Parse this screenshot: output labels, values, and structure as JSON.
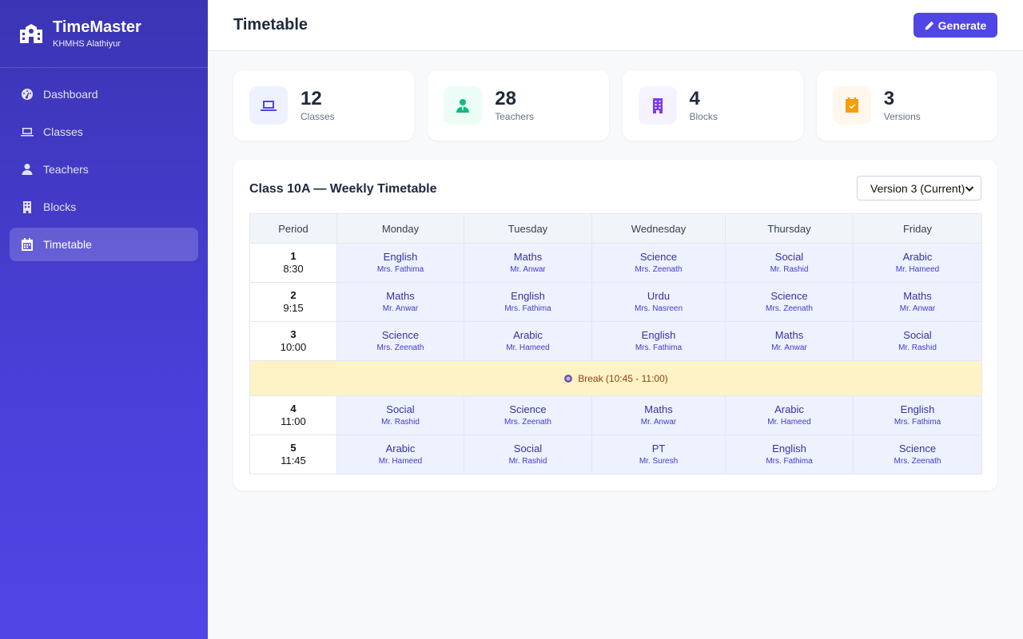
{
  "brand": {
    "name": "TimeMaster",
    "subtitle": "KHMHS Alathiyur"
  },
  "nav": [
    {
      "label": "Dashboard",
      "icon": "dashboard-icon"
    },
    {
      "label": "Classes",
      "icon": "laptop-icon"
    },
    {
      "label": "Teachers",
      "icon": "user-icon"
    },
    {
      "label": "Blocks",
      "icon": "building-icon"
    },
    {
      "label": "Timetable",
      "icon": "calendar-icon",
      "active": true
    }
  ],
  "header": {
    "title": "Timetable",
    "generate_label": "Generate"
  },
  "stats": [
    {
      "value": "12",
      "label": "Classes",
      "icon": "laptop-icon",
      "color": "#4f46e5",
      "bg": "#eef2ff"
    },
    {
      "value": "28",
      "label": "Teachers",
      "icon": "user-icon",
      "color": "#10b981",
      "bg": "#ecfdf5"
    },
    {
      "value": "4",
      "label": "Blocks",
      "icon": "building-icon",
      "color": "#7c3aed",
      "bg": "#f5f3ff"
    },
    {
      "value": "3",
      "label": "Versions",
      "icon": "calendar-check-icon",
      "color": "#f59e0b",
      "bg": "#fff7ed"
    }
  ],
  "timetable": {
    "title": "Class 10A — Weekly Timetable",
    "version_selected": "Version 3 (Current)",
    "columns": [
      "Period",
      "Monday",
      "Tuesday",
      "Wednesday",
      "Thursday",
      "Friday"
    ],
    "rows": [
      {
        "num": "1",
        "time": "8:30",
        "slots": [
          {
            "subject": "English",
            "teacher": "Mrs. Fathima"
          },
          {
            "subject": "Maths",
            "teacher": "Mr. Anwar"
          },
          {
            "subject": "Science",
            "teacher": "Mrs. Zeenath"
          },
          {
            "subject": "Social",
            "teacher": "Mr. Rashid"
          },
          {
            "subject": "Arabic",
            "teacher": "Mr. Hameed"
          }
        ]
      },
      {
        "num": "2",
        "time": "9:15",
        "slots": [
          {
            "subject": "Maths",
            "teacher": "Mr. Anwar"
          },
          {
            "subject": "English",
            "teacher": "Mrs. Fathima"
          },
          {
            "subject": "Urdu",
            "teacher": "Mrs. Nasreen"
          },
          {
            "subject": "Science",
            "teacher": "Mrs. Zeenath"
          },
          {
            "subject": "Maths",
            "teacher": "Mr. Anwar"
          }
        ]
      },
      {
        "num": "3",
        "time": "10:00",
        "slots": [
          {
            "subject": "Science",
            "teacher": "Mrs. Zeenath"
          },
          {
            "subject": "Arabic",
            "teacher": "Mr. Hameed"
          },
          {
            "subject": "English",
            "teacher": "Mrs. Fathima"
          },
          {
            "subject": "Maths",
            "teacher": "Mr. Anwar"
          },
          {
            "subject": "Social",
            "teacher": "Mr. Rashid"
          }
        ]
      },
      {
        "num": "4",
        "time": "11:00",
        "slots": [
          {
            "subject": "Social",
            "teacher": "Mr. Rashid"
          },
          {
            "subject": "Science",
            "teacher": "Mrs. Zeenath"
          },
          {
            "subject": "Maths",
            "teacher": "Mr. Anwar"
          },
          {
            "subject": "Arabic",
            "teacher": "Mr. Hameed"
          },
          {
            "subject": "English",
            "teacher": "Mrs. Fathima"
          }
        ]
      },
      {
        "num": "5",
        "time": "11:45",
        "slots": [
          {
            "subject": "Arabic",
            "teacher": "Mr. Hameed"
          },
          {
            "subject": "Social",
            "teacher": "Mr. Rashid"
          },
          {
            "subject": "PT",
            "teacher": "Mr. Suresh"
          },
          {
            "subject": "English",
            "teacher": "Mrs. Fathima"
          },
          {
            "subject": "Science",
            "teacher": "Mrs. Zeenath"
          }
        ]
      }
    ],
    "break_label": "Break (10:45 - 11:00)",
    "break_icon": "coffee-icon"
  }
}
